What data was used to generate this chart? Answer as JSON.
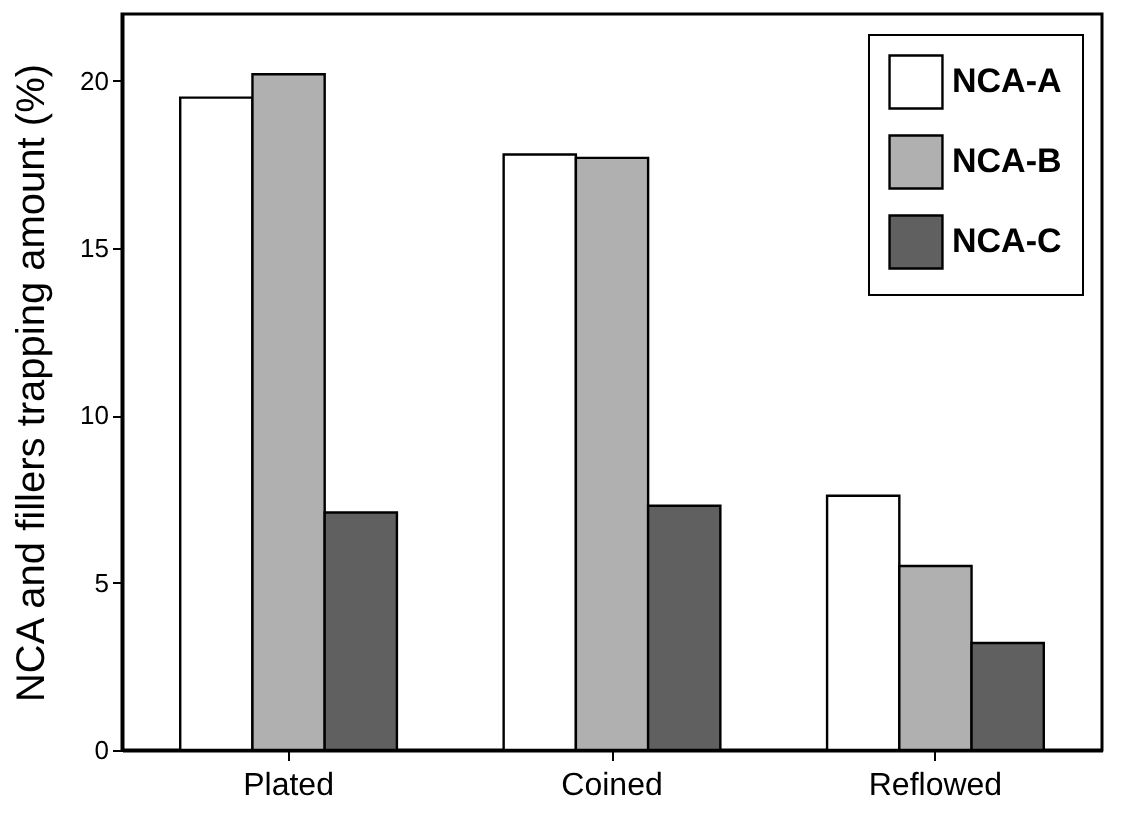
{
  "chart_data": {
    "type": "bar",
    "ylabel": "NCA and fillers trapping amount  (%)",
    "categories": [
      "Plated",
      "Coined",
      "Reflowed"
    ],
    "series": [
      {
        "name": "NCA-A",
        "color": "#ffffff",
        "values": [
          19.5,
          17.8,
          7.6
        ]
      },
      {
        "name": "NCA-B",
        "color": "#b0b0b0",
        "values": [
          20.2,
          17.7,
          5.5
        ]
      },
      {
        "name": "NCA-C",
        "color": "#606060",
        "values": [
          7.1,
          7.3,
          3.2
        ]
      }
    ],
    "ylim": [
      0,
      22
    ],
    "yticks": [
      0,
      5,
      10,
      15,
      20
    ],
    "grid": false,
    "legend": "top right"
  }
}
